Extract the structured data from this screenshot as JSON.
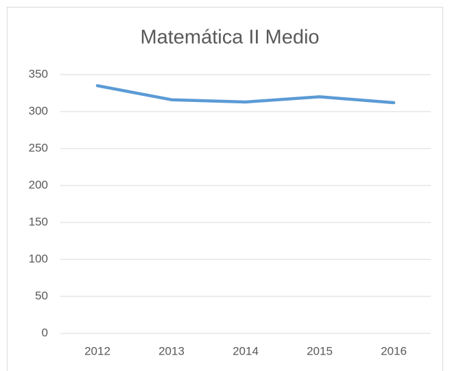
{
  "chart_data": {
    "type": "line",
    "title": "Matemática II Medio",
    "categories": [
      "2012",
      "2013",
      "2014",
      "2015",
      "2016"
    ],
    "series": [
      {
        "name": "Matemática II Medio",
        "color": "#5b9bd5",
        "values": [
          335,
          316,
          313,
          320,
          312
        ]
      }
    ],
    "ylim": [
      0,
      350
    ],
    "yticks": [
      0,
      50,
      100,
      150,
      200,
      250,
      300,
      350
    ],
    "grid": true
  }
}
